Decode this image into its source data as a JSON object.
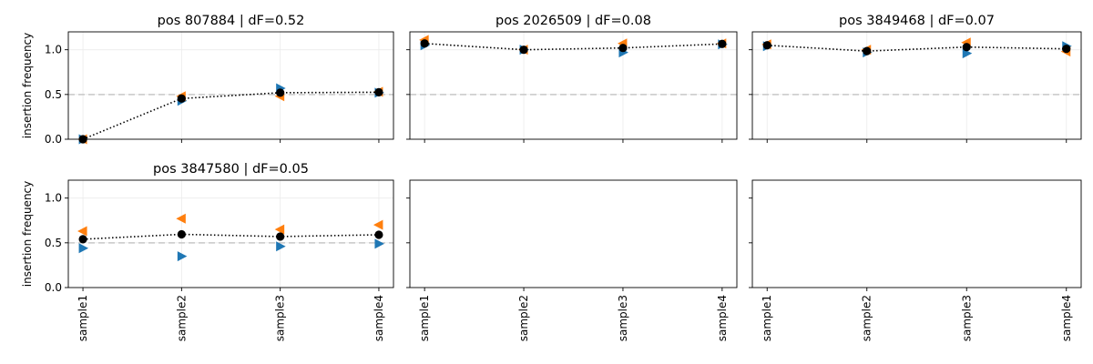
{
  "chart_data": [
    {
      "type": "scatter",
      "title": "pos 807884  |  dF=0.52",
      "ylabel": "insertion frequency",
      "categories": [
        "sample1",
        "sample2",
        "sample3",
        "sample4"
      ],
      "ylim": [
        0,
        1.2
      ],
      "yticks": [
        "0.0",
        "0.5",
        "1.0"
      ],
      "reference_line": 0.5,
      "grid": true,
      "series": [
        {
          "marker": "triangle-right",
          "color": "#1f77b4",
          "values": [
            0.0,
            0.43,
            0.57,
            0.52
          ]
        },
        {
          "marker": "triangle-left",
          "color": "#ff7f0e",
          "values": [
            0.0,
            0.48,
            0.48,
            0.53
          ]
        },
        {
          "marker": "circle",
          "color": "#000000",
          "line": "dotted",
          "values": [
            0.0,
            0.455,
            0.52,
            0.525
          ]
        }
      ]
    },
    {
      "type": "scatter",
      "title": "pos 2026509  |  dF=0.08",
      "categories": [
        "sample1",
        "sample2",
        "sample3",
        "sample4"
      ],
      "ylim": [
        0,
        1.2
      ],
      "reference_line": 0.5,
      "grid": true,
      "series": [
        {
          "marker": "triangle-right",
          "color": "#1f77b4",
          "values": [
            1.05,
            1.0,
            0.97,
            1.06
          ]
        },
        {
          "marker": "triangle-left",
          "color": "#ff7f0e",
          "values": [
            1.11,
            1.0,
            1.07,
            1.07
          ]
        },
        {
          "marker": "circle",
          "color": "#000000",
          "line": "dotted",
          "values": [
            1.07,
            1.0,
            1.02,
            1.065
          ]
        }
      ]
    },
    {
      "type": "scatter",
      "title": "pos 3849468  |  dF=0.07",
      "categories": [
        "sample1",
        "sample2",
        "sample3",
        "sample4"
      ],
      "ylim": [
        0,
        1.2
      ],
      "reference_line": 0.5,
      "grid": true,
      "series": [
        {
          "marker": "triangle-right",
          "color": "#1f77b4",
          "values": [
            1.04,
            0.97,
            0.96,
            1.04
          ]
        },
        {
          "marker": "triangle-left",
          "color": "#ff7f0e",
          "values": [
            1.06,
            1.0,
            1.08,
            0.98
          ]
        },
        {
          "marker": "circle",
          "color": "#000000",
          "line": "dotted",
          "values": [
            1.05,
            0.985,
            1.03,
            1.01
          ]
        }
      ]
    },
    {
      "type": "scatter",
      "title": "pos 3847580  |  dF=0.05",
      "ylabel": "insertion frequency",
      "categories": [
        "sample1",
        "sample2",
        "sample3",
        "sample4"
      ],
      "ylim": [
        0,
        1.2
      ],
      "yticks": [
        "0.0",
        "0.5",
        "1.0"
      ],
      "reference_line": 0.5,
      "grid": true,
      "series": [
        {
          "marker": "triangle-right",
          "color": "#1f77b4",
          "values": [
            0.44,
            0.35,
            0.46,
            0.49
          ]
        },
        {
          "marker": "triangle-left",
          "color": "#ff7f0e",
          "values": [
            0.63,
            0.77,
            0.65,
            0.7
          ]
        },
        {
          "marker": "circle",
          "color": "#000000",
          "line": "dotted",
          "values": [
            0.54,
            0.595,
            0.57,
            0.59
          ]
        }
      ]
    },
    {
      "type": "scatter",
      "title": "",
      "categories": [
        "sample1",
        "sample2",
        "sample3",
        "sample4"
      ],
      "ylim": [
        0,
        1.2
      ],
      "series": []
    },
    {
      "type": "scatter",
      "title": "",
      "categories": [
        "sample1",
        "sample2",
        "sample3",
        "sample4"
      ],
      "ylim": [
        0,
        1.2
      ],
      "series": []
    }
  ]
}
